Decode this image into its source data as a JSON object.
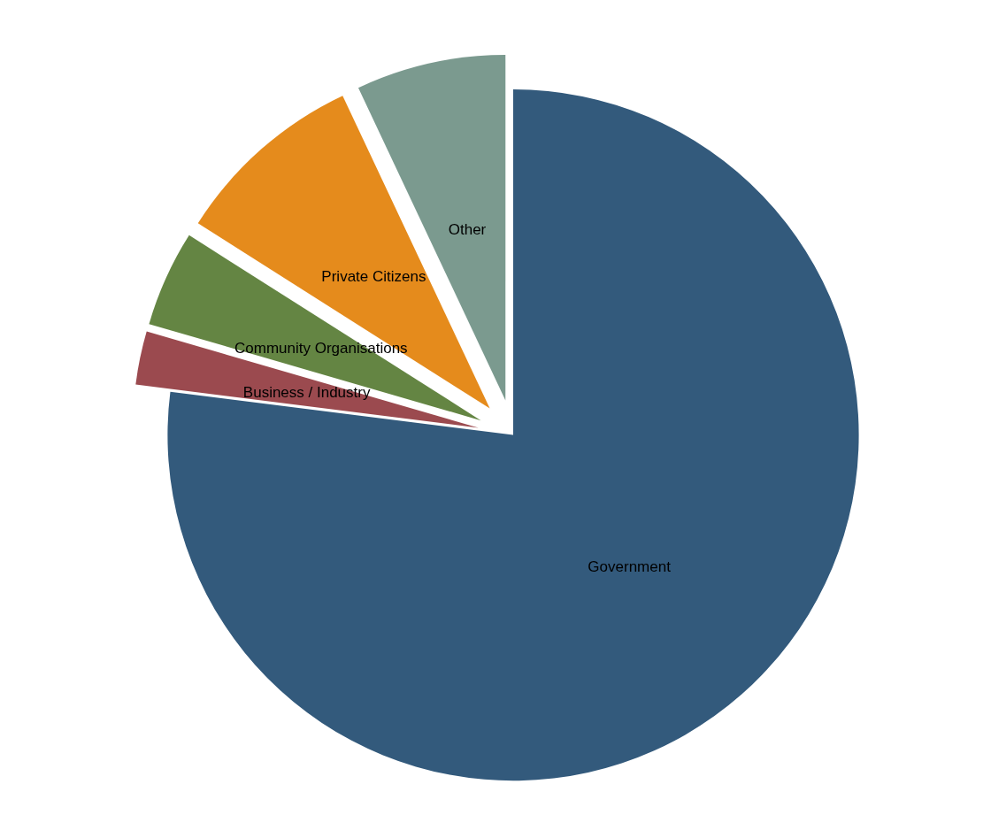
{
  "chart_data": {
    "type": "pie",
    "categories": [
      "Government",
      "Business / Industry",
      "Community Organisations",
      "Private Citizens",
      "Other"
    ],
    "values": [
      77,
      2.5,
      4.5,
      9,
      7
    ],
    "colors": [
      "#335a7c",
      "#9b4a4f",
      "#648543",
      "#e58b1c",
      "#7b9a8f"
    ]
  }
}
